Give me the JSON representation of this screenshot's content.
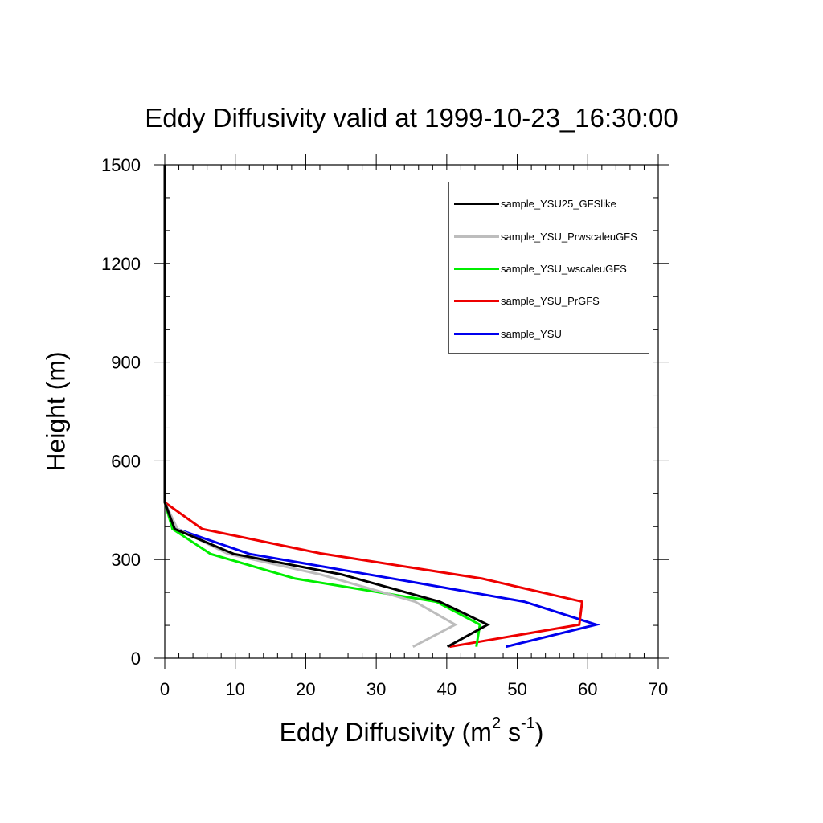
{
  "chart_data": {
    "type": "line",
    "title": "Eddy Diffusivity valid at 1999-10-23_16:30:00",
    "xlabel_base": "Eddy Diffusivity (m",
    "xlabel_sup1": "2",
    "xlabel_mid": " s",
    "xlabel_sup2": "-1",
    "xlabel_end": ")",
    "ylabel": "Height (m)",
    "xlim": [
      0,
      70
    ],
    "ylim": [
      0,
      1500
    ],
    "x_ticks": [
      0,
      10,
      20,
      30,
      40,
      50,
      60,
      70
    ],
    "y_ticks": [
      0,
      300,
      600,
      900,
      1200,
      1500
    ],
    "x_minor_step": 2,
    "y_minor_step": 100,
    "legend_position": "top-right",
    "series": [
      {
        "name": "sample_YSU25_GFSlike",
        "color": "#000000",
        "points": [
          [
            40.1,
            35
          ],
          [
            45.8,
            102
          ],
          [
            39.0,
            172
          ],
          [
            25.0,
            255
          ],
          [
            9.8,
            317
          ],
          [
            1.4,
            393
          ],
          [
            0,
            474
          ],
          [
            0,
            1500
          ]
        ]
      },
      {
        "name": "sample_YSU_PrwscaleuGFS",
        "color": "#bdbdbd",
        "points": [
          [
            35.2,
            35
          ],
          [
            41.2,
            102
          ],
          [
            35.5,
            172
          ],
          [
            22.0,
            255
          ],
          [
            9.0,
            317
          ],
          [
            1.8,
            393
          ],
          [
            0,
            474
          ],
          [
            0,
            1500
          ]
        ]
      },
      {
        "name": "sample_YSU_wscaleuGFS",
        "color": "#00ee00",
        "points": [
          [
            44.2,
            35
          ],
          [
            44.7,
            102
          ],
          [
            38.5,
            172
          ],
          [
            18.5,
            242
          ],
          [
            6.5,
            317
          ],
          [
            1.1,
            393
          ],
          [
            0,
            474
          ],
          [
            0,
            1500
          ]
        ]
      },
      {
        "name": "sample_YSU_PrGFS",
        "color": "#ee0000",
        "points": [
          [
            40.4,
            35
          ],
          [
            58.8,
            102
          ],
          [
            59.2,
            172
          ],
          [
            45.0,
            242
          ],
          [
            22.0,
            319
          ],
          [
            5.3,
            393
          ],
          [
            0,
            474
          ],
          [
            0,
            1500
          ]
        ]
      },
      {
        "name": "sample_YSU",
        "color": "#0000ee",
        "points": [
          [
            48.4,
            35
          ],
          [
            61.2,
            102
          ],
          [
            51.0,
            172
          ],
          [
            35.0,
            232
          ],
          [
            12.0,
            317
          ],
          [
            1.7,
            393
          ],
          [
            0,
            474
          ],
          [
            0,
            1500
          ]
        ]
      }
    ]
  }
}
